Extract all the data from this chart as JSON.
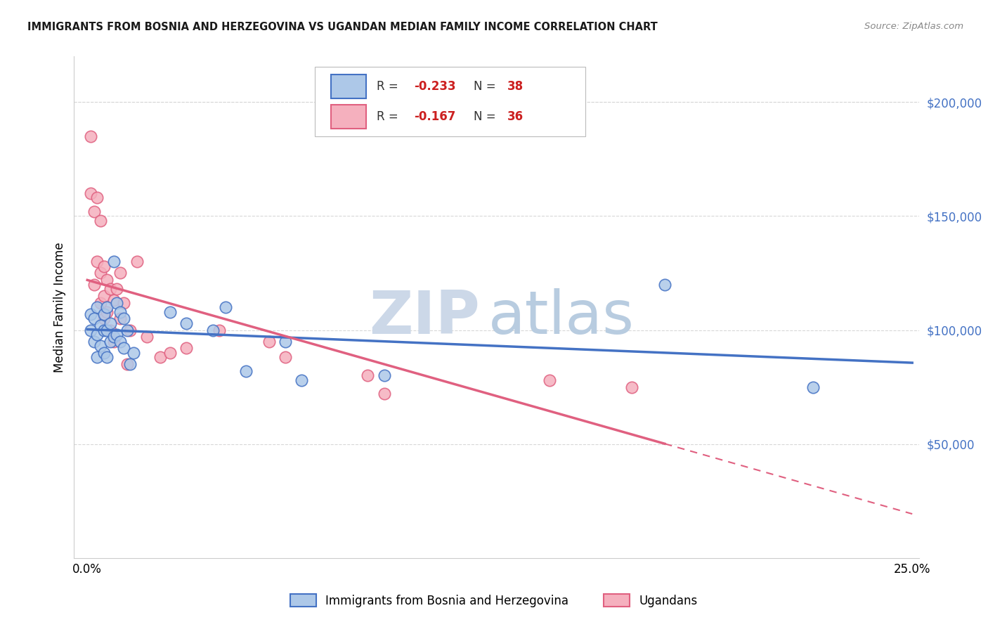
{
  "title": "IMMIGRANTS FROM BOSNIA AND HERZEGOVINA VS UGANDAN MEDIAN FAMILY INCOME CORRELATION CHART",
  "source": "Source: ZipAtlas.com",
  "ylabel": "Median Family Income",
  "xlim_min": -0.004,
  "xlim_max": 0.252,
  "ylim_min": 0,
  "ylim_max": 220000,
  "ytick_vals": [
    50000,
    100000,
    150000,
    200000
  ],
  "ytick_labels": [
    "$50,000",
    "$100,000",
    "$150,000",
    "$200,000"
  ],
  "xtick_vals": [
    0.0,
    0.25
  ],
  "xtick_labels": [
    "0.0%",
    "25.0%"
  ],
  "blue_label": "Immigrants from Bosnia and Herzegovina",
  "pink_label": "Ugandans",
  "blue_R": -0.233,
  "blue_N": 38,
  "pink_R": -0.167,
  "pink_N": 36,
  "blue_face": "#adc8e8",
  "blue_edge": "#4472c4",
  "pink_face": "#f5b0be",
  "pink_edge": "#e06080",
  "blue_line": "#4472c4",
  "pink_line": "#e06080",
  "grid_color": "#d8d8d8",
  "watermark_zip": "ZIP",
  "watermark_atlas": "atlas",
  "watermark_color_zip": "#ccd8e8",
  "watermark_color_atlas": "#b8cce0",
  "blue_x": [
    0.001,
    0.001,
    0.002,
    0.002,
    0.003,
    0.003,
    0.003,
    0.004,
    0.004,
    0.005,
    0.005,
    0.005,
    0.006,
    0.006,
    0.006,
    0.007,
    0.007,
    0.008,
    0.008,
    0.009,
    0.009,
    0.01,
    0.01,
    0.011,
    0.011,
    0.012,
    0.013,
    0.014,
    0.025,
    0.03,
    0.038,
    0.042,
    0.048,
    0.06,
    0.065,
    0.09,
    0.175,
    0.22
  ],
  "blue_y": [
    107000,
    100000,
    105000,
    95000,
    110000,
    98000,
    88000,
    102000,
    93000,
    107000,
    100000,
    90000,
    110000,
    100000,
    88000,
    103000,
    95000,
    130000,
    97000,
    112000,
    98000,
    108000,
    95000,
    105000,
    92000,
    100000,
    85000,
    90000,
    108000,
    103000,
    100000,
    110000,
    82000,
    95000,
    78000,
    80000,
    120000,
    75000
  ],
  "pink_x": [
    0.001,
    0.001,
    0.002,
    0.002,
    0.003,
    0.003,
    0.004,
    0.004,
    0.004,
    0.005,
    0.005,
    0.005,
    0.006,
    0.006,
    0.007,
    0.007,
    0.008,
    0.008,
    0.009,
    0.01,
    0.01,
    0.011,
    0.012,
    0.013,
    0.015,
    0.018,
    0.022,
    0.025,
    0.03,
    0.04,
    0.055,
    0.06,
    0.085,
    0.09,
    0.14,
    0.165
  ],
  "pink_y": [
    185000,
    160000,
    152000,
    120000,
    158000,
    130000,
    148000,
    125000,
    112000,
    128000,
    115000,
    105000,
    122000,
    108000,
    118000,
    100000,
    113000,
    95000,
    118000,
    125000,
    105000,
    112000,
    85000,
    100000,
    130000,
    97000,
    88000,
    90000,
    92000,
    100000,
    95000,
    88000,
    80000,
    72000,
    78000,
    75000
  ]
}
